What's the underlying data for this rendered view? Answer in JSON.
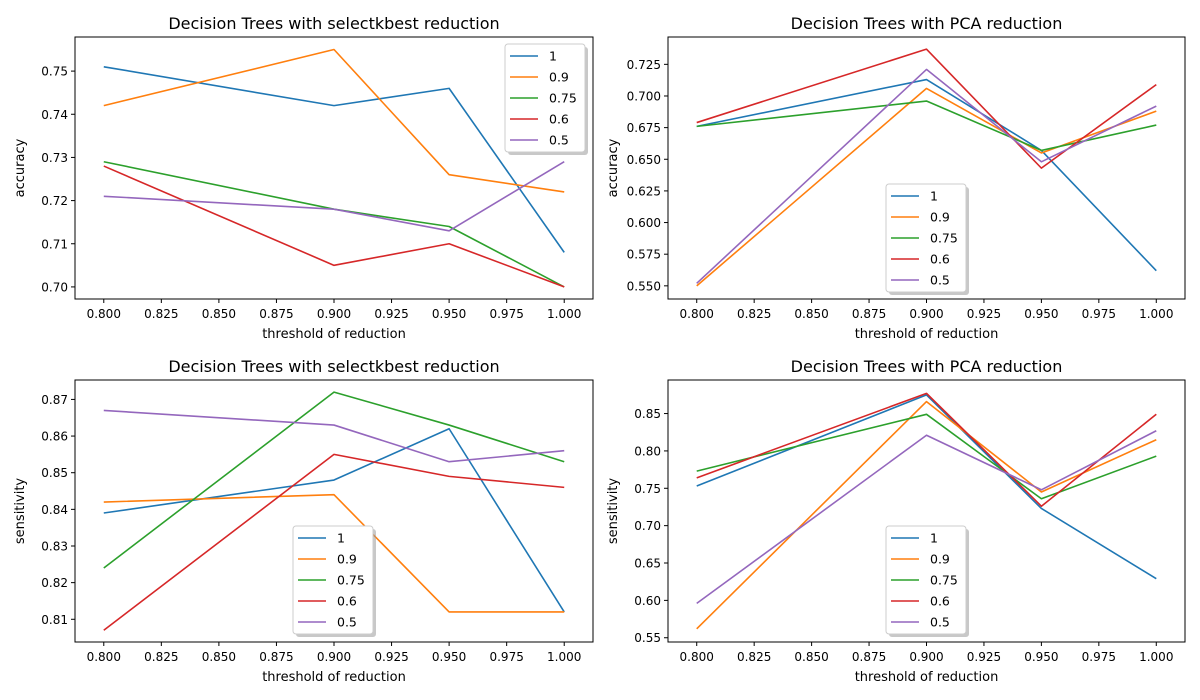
{
  "chart_data": [
    {
      "type": "line",
      "title": "Decision Trees with selectkbest reduction",
      "xlabel": "threshold of reduction",
      "ylabel": "accuracy",
      "x": [
        0.8,
        0.9,
        0.95,
        1.0
      ],
      "xlim": [
        0.7875,
        1.0125
      ],
      "ylim": [
        0.6972,
        0.7579
      ],
      "xticks": [
        "0.800",
        "0.825",
        "0.850",
        "0.875",
        "0.900",
        "0.925",
        "0.950",
        "0.975",
        "1.000"
      ],
      "yticks": [
        "0.70",
        "0.71",
        "0.72",
        "0.73",
        "0.74",
        "0.75"
      ],
      "legend_position": "top-right",
      "series": [
        {
          "name": "1",
          "color": "#1f77b4",
          "values": [
            0.751,
            0.742,
            0.746,
            0.708
          ]
        },
        {
          "name": "0.9",
          "color": "#ff7f0e",
          "values": [
            0.742,
            0.755,
            0.726,
            0.722
          ]
        },
        {
          "name": "0.75",
          "color": "#2ca02c",
          "values": [
            0.729,
            0.718,
            0.714,
            0.7
          ]
        },
        {
          "name": "0.6",
          "color": "#d62728",
          "values": [
            0.728,
            0.705,
            0.71,
            0.7
          ]
        },
        {
          "name": "0.5",
          "color": "#9467bd",
          "values": [
            0.721,
            0.718,
            0.713,
            0.729
          ]
        }
      ]
    },
    {
      "type": "line",
      "title": "Decision Trees with PCA reduction",
      "xlabel": "threshold of reduction",
      "ylabel": "accuracy",
      "x": [
        0.8,
        0.9,
        0.95,
        1.0
      ],
      "xlim": [
        0.7875,
        1.0125
      ],
      "ylim": [
        0.5396,
        0.7466
      ],
      "xticks": [
        "0.800",
        "0.825",
        "0.850",
        "0.875",
        "0.900",
        "0.925",
        "0.950",
        "0.975",
        "1.000"
      ],
      "yticks": [
        "0.550",
        "0.575",
        "0.600",
        "0.625",
        "0.650",
        "0.675",
        "0.700",
        "0.725"
      ],
      "legend_position": "lower-center",
      "series": [
        {
          "name": "1",
          "color": "#1f77b4",
          "values": [
            0.676,
            0.713,
            0.657,
            0.562
          ]
        },
        {
          "name": "0.9",
          "color": "#ff7f0e",
          "values": [
            0.55,
            0.706,
            0.655,
            0.688
          ]
        },
        {
          "name": "0.75",
          "color": "#2ca02c",
          "values": [
            0.676,
            0.696,
            0.657,
            0.677
          ]
        },
        {
          "name": "0.6",
          "color": "#d62728",
          "values": [
            0.679,
            0.737,
            0.643,
            0.709
          ]
        },
        {
          "name": "0.5",
          "color": "#9467bd",
          "values": [
            0.552,
            0.721,
            0.648,
            0.692
          ]
        }
      ]
    },
    {
      "type": "line",
      "title": "Decision Trees with selectkbest reduction",
      "xlabel": "threshold of reduction",
      "ylabel": "sensitivity",
      "x": [
        0.8,
        0.9,
        0.95,
        1.0
      ],
      "xlim": [
        0.7875,
        1.0125
      ],
      "ylim": [
        0.8038,
        0.8753
      ],
      "xticks": [
        "0.800",
        "0.825",
        "0.850",
        "0.875",
        "0.900",
        "0.925",
        "0.950",
        "0.975",
        "1.000"
      ],
      "yticks": [
        "0.81",
        "0.82",
        "0.83",
        "0.84",
        "0.85",
        "0.86",
        "0.87"
      ],
      "legend_position": "lower-center",
      "series": [
        {
          "name": "1",
          "color": "#1f77b4",
          "values": [
            0.839,
            0.848,
            0.862,
            0.812
          ]
        },
        {
          "name": "0.9",
          "color": "#ff7f0e",
          "values": [
            0.842,
            0.844,
            0.812,
            0.812
          ]
        },
        {
          "name": "0.75",
          "color": "#2ca02c",
          "values": [
            0.824,
            0.872,
            0.863,
            0.853
          ]
        },
        {
          "name": "0.6",
          "color": "#d62728",
          "values": [
            0.807,
            0.855,
            0.849,
            0.846
          ]
        },
        {
          "name": "0.5",
          "color": "#9467bd",
          "values": [
            0.867,
            0.863,
            0.853,
            0.856
          ]
        }
      ]
    },
    {
      "type": "line",
      "title": "Decision Trees with PCA reduction",
      "xlabel": "threshold of reduction",
      "ylabel": "sensitivity",
      "x": [
        0.8,
        0.9,
        0.95,
        1.0
      ],
      "xlim": [
        0.7875,
        1.0125
      ],
      "ylim": [
        0.5443,
        0.8949
      ],
      "xticks": [
        "0.800",
        "0.825",
        "0.850",
        "0.875",
        "0.900",
        "0.925",
        "0.950",
        "0.975",
        "1.000"
      ],
      "yticks": [
        "0.55",
        "0.60",
        "0.65",
        "0.70",
        "0.75",
        "0.80",
        "0.85"
      ],
      "legend_position": "lower-center",
      "series": [
        {
          "name": "1",
          "color": "#1f77b4",
          "values": [
            0.753,
            0.875,
            0.723,
            0.629
          ]
        },
        {
          "name": "0.9",
          "color": "#ff7f0e",
          "values": [
            0.562,
            0.866,
            0.745,
            0.815
          ]
        },
        {
          "name": "0.75",
          "color": "#2ca02c",
          "values": [
            0.773,
            0.849,
            0.736,
            0.793
          ]
        },
        {
          "name": "0.6",
          "color": "#d62728",
          "values": [
            0.764,
            0.877,
            0.726,
            0.849
          ]
        },
        {
          "name": "0.5",
          "color": "#9467bd",
          "values": [
            0.596,
            0.821,
            0.748,
            0.827
          ]
        }
      ]
    }
  ]
}
